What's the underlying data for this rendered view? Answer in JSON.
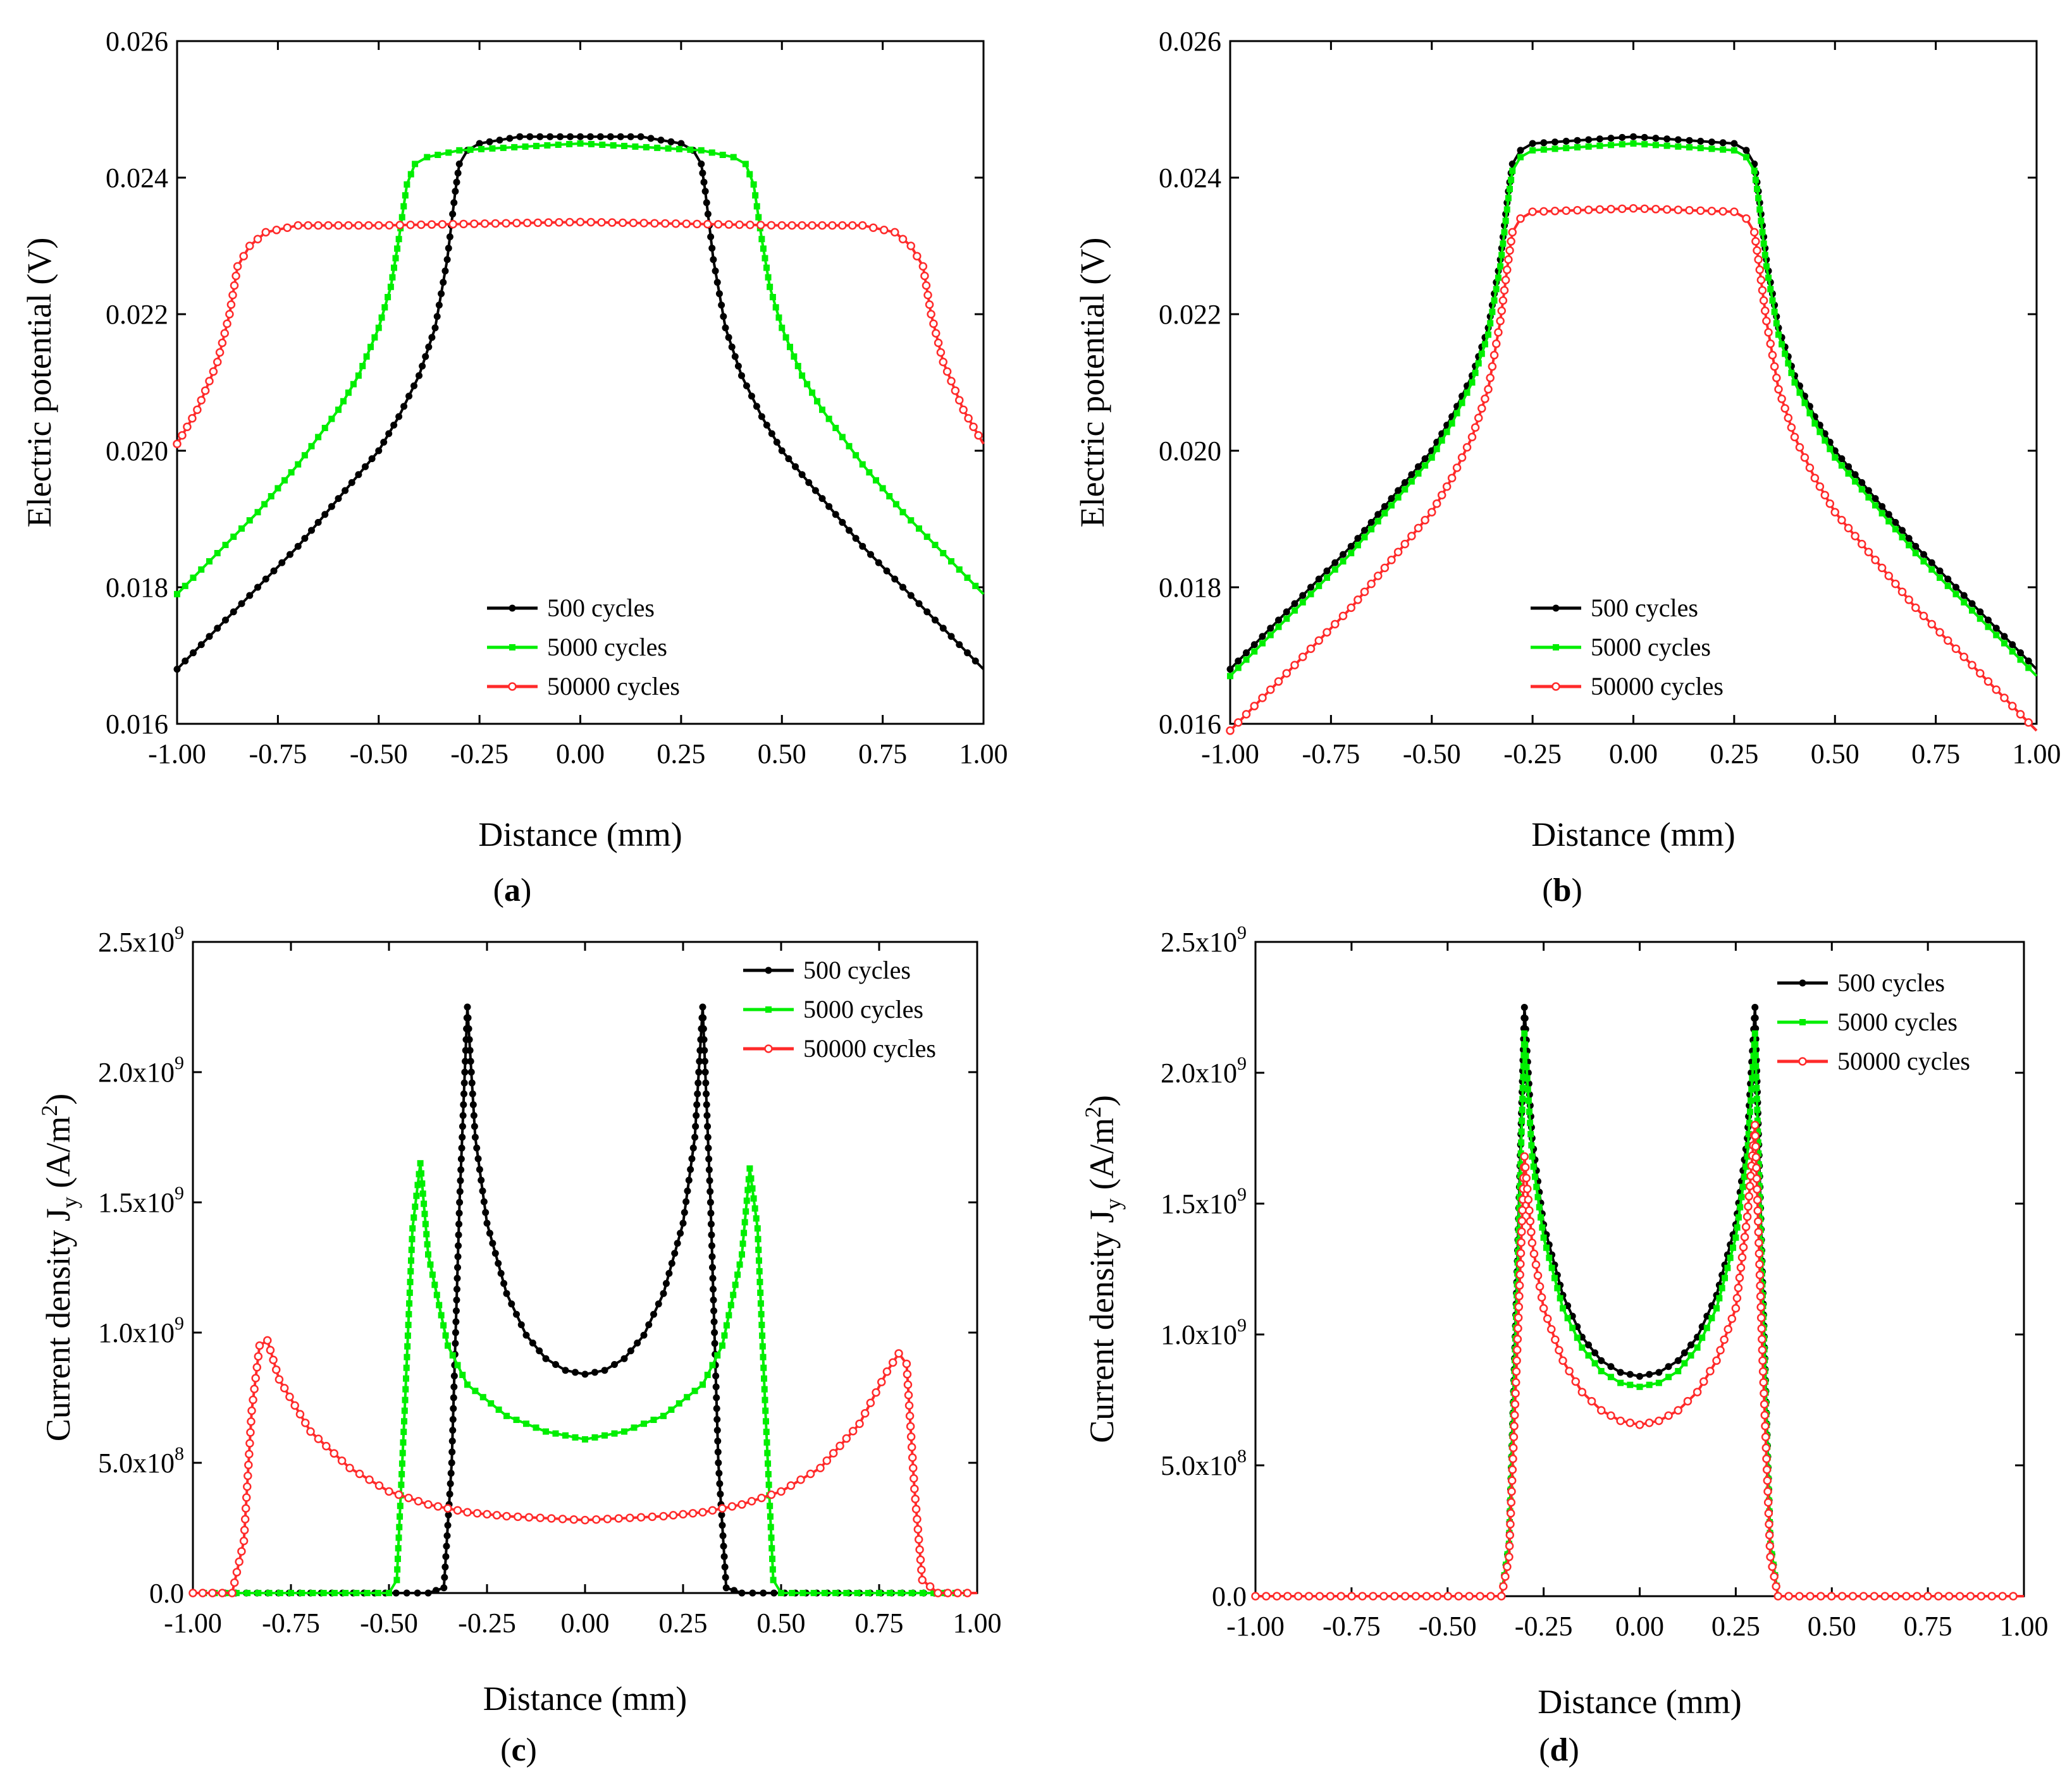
{
  "chart_data": [
    {
      "id": "a",
      "type": "line",
      "panel_label": "a",
      "xlabel": "Distance (mm)",
      "ylabel": "Electric potential (V)",
      "xlim": [
        -1.0,
        1.0
      ],
      "ylim": [
        0.016,
        0.026
      ],
      "xticks": [
        "-1.00",
        "-0.75",
        "-0.50",
        "-0.25",
        "0.00",
        "0.25",
        "0.50",
        "0.75",
        "1.00"
      ],
      "yticks": [
        "0.016",
        "0.018",
        "0.020",
        "0.022",
        "0.024",
        "0.026"
      ],
      "legend_position": "bottom-center",
      "series": [
        {
          "name": "500 cycles",
          "color": "#000000",
          "marker": "dot",
          "x": [
            -1.0,
            -0.9,
            -0.8,
            -0.7,
            -0.6,
            -0.5,
            -0.45,
            -0.4,
            -0.36,
            -0.33,
            -0.31,
            -0.3,
            -0.28,
            -0.25,
            -0.15,
            0.0,
            0.15,
            0.25,
            0.28,
            0.3,
            0.31,
            0.33,
            0.36,
            0.4,
            0.45,
            0.5,
            0.6,
            0.7,
            0.8,
            0.9,
            1.0
          ],
          "y": [
            0.0168,
            0.0174,
            0.018,
            0.0186,
            0.0193,
            0.02,
            0.0205,
            0.0211,
            0.0218,
            0.0228,
            0.0238,
            0.0242,
            0.0244,
            0.0245,
            0.0246,
            0.0246,
            0.0246,
            0.0245,
            0.0244,
            0.0242,
            0.0238,
            0.0228,
            0.0218,
            0.0211,
            0.0205,
            0.02,
            0.0193,
            0.0186,
            0.018,
            0.0174,
            0.0168
          ]
        },
        {
          "name": "5000 cycles",
          "color": "#00ee00",
          "marker": "square",
          "x": [
            -1.0,
            -0.9,
            -0.8,
            -0.7,
            -0.6,
            -0.55,
            -0.5,
            -0.47,
            -0.45,
            -0.43,
            -0.41,
            -0.38,
            -0.3,
            0.0,
            0.3,
            0.38,
            0.41,
            0.43,
            0.45,
            0.47,
            0.5,
            0.55,
            0.6,
            0.7,
            0.8,
            0.9,
            1.0
          ],
          "y": [
            0.0179,
            0.0185,
            0.0191,
            0.0198,
            0.0206,
            0.0211,
            0.0218,
            0.0224,
            0.0231,
            0.0239,
            0.0242,
            0.0243,
            0.0244,
            0.0245,
            0.0244,
            0.0243,
            0.0242,
            0.0239,
            0.0231,
            0.0224,
            0.0218,
            0.0211,
            0.0206,
            0.0198,
            0.0191,
            0.0185,
            0.0179
          ]
        },
        {
          "name": "50000 cycles",
          "color": "#ff2a2a",
          "marker": "open",
          "x": [
            -1.0,
            -0.95,
            -0.9,
            -0.87,
            -0.85,
            -0.82,
            -0.78,
            -0.7,
            -0.5,
            0.0,
            0.5,
            0.7,
            0.78,
            0.82,
            0.85,
            0.87,
            0.9,
            0.95,
            1.0
          ],
          "y": [
            0.0201,
            0.0206,
            0.0213,
            0.022,
            0.0227,
            0.023,
            0.0232,
            0.0233,
            0.0233,
            0.02335,
            0.0233,
            0.0233,
            0.0232,
            0.023,
            0.0227,
            0.022,
            0.0213,
            0.0206,
            0.0201
          ]
        }
      ]
    },
    {
      "id": "b",
      "type": "line",
      "panel_label": "b",
      "xlabel": "Distance (mm)",
      "ylabel": "Electric potential (V)",
      "xlim": [
        -1.0,
        1.0
      ],
      "ylim": [
        0.016,
        0.026
      ],
      "xticks": [
        "-1.00",
        "-0.75",
        "-0.50",
        "-0.25",
        "0.00",
        "0.25",
        "0.50",
        "0.75",
        "1.00"
      ],
      "yticks": [
        "0.016",
        "0.018",
        "0.020",
        "0.022",
        "0.024",
        "0.026"
      ],
      "legend_position": "bottom-right",
      "series": [
        {
          "name": "500 cycles",
          "color": "#000000",
          "marker": "dot",
          "x": [
            -1.0,
            -0.9,
            -0.8,
            -0.7,
            -0.6,
            -0.5,
            -0.45,
            -0.4,
            -0.36,
            -0.33,
            -0.31,
            -0.3,
            -0.28,
            -0.25,
            0.0,
            0.25,
            0.28,
            0.3,
            0.31,
            0.33,
            0.36,
            0.4,
            0.45,
            0.5,
            0.6,
            0.7,
            0.8,
            0.9,
            1.0
          ],
          "y": [
            0.0168,
            0.0174,
            0.018,
            0.0186,
            0.0193,
            0.02,
            0.0205,
            0.0211,
            0.0218,
            0.0228,
            0.0238,
            0.0242,
            0.0244,
            0.0245,
            0.0246,
            0.0245,
            0.0244,
            0.0242,
            0.0238,
            0.0228,
            0.0218,
            0.0211,
            0.0205,
            0.02,
            0.0193,
            0.0186,
            0.018,
            0.0174,
            0.0168
          ]
        },
        {
          "name": "5000 cycles",
          "color": "#00ee00",
          "marker": "square",
          "x": [
            -1.0,
            -0.9,
            -0.8,
            -0.7,
            -0.6,
            -0.5,
            -0.45,
            -0.4,
            -0.36,
            -0.33,
            -0.31,
            -0.3,
            -0.28,
            -0.25,
            0.0,
            0.25,
            0.28,
            0.3,
            0.31,
            0.33,
            0.36,
            0.4,
            0.45,
            0.5,
            0.6,
            0.7,
            0.8,
            0.9,
            1.0
          ],
          "y": [
            0.0167,
            0.0173,
            0.0179,
            0.0185,
            0.0192,
            0.0199,
            0.0204,
            0.021,
            0.0217,
            0.0227,
            0.0237,
            0.0241,
            0.0243,
            0.0244,
            0.0245,
            0.0244,
            0.0243,
            0.0241,
            0.0237,
            0.0227,
            0.0217,
            0.021,
            0.0204,
            0.0199,
            0.0192,
            0.0185,
            0.0179,
            0.0173,
            0.0167
          ]
        },
        {
          "name": "50000 cycles",
          "color": "#ff2a2a",
          "marker": "open",
          "x": [
            -1.0,
            -0.9,
            -0.8,
            -0.7,
            -0.6,
            -0.5,
            -0.45,
            -0.4,
            -0.36,
            -0.33,
            -0.31,
            -0.3,
            -0.28,
            -0.25,
            0.0,
            0.25,
            0.28,
            0.3,
            0.31,
            0.33,
            0.36,
            0.4,
            0.45,
            0.5,
            0.6,
            0.7,
            0.8,
            0.9,
            1.0
          ],
          "y": [
            0.0159,
            0.0165,
            0.0171,
            0.0177,
            0.0184,
            0.0191,
            0.0196,
            0.0202,
            0.0209,
            0.0219,
            0.0228,
            0.0232,
            0.0234,
            0.0235,
            0.02355,
            0.0235,
            0.0234,
            0.0232,
            0.0228,
            0.0219,
            0.0209,
            0.0202,
            0.0196,
            0.0191,
            0.0184,
            0.0177,
            0.0171,
            0.0165,
            0.0159
          ]
        }
      ]
    },
    {
      "id": "c",
      "type": "line",
      "panel_label": "c",
      "xlabel": "Distance (mm)",
      "ylabel": "Current density J",
      "ylabel_sub": "y",
      "ylabel_unit": "(A/m",
      "ylabel_sup": "2",
      "ylabel_close": ")",
      "xlim": [
        -1.0,
        1.0
      ],
      "ylim": [
        0,
        2500000000
      ],
      "xticks": [
        "-1.00",
        "-0.75",
        "-0.50",
        "-0.25",
        "0.00",
        "0.25",
        "0.50",
        "0.75",
        "1.00"
      ],
      "yticks": [
        {
          "mant": "0.0",
          "exp": ""
        },
        {
          "mant": "5.0x10",
          "exp": "8"
        },
        {
          "mant": "1.0x10",
          "exp": "9"
        },
        {
          "mant": "1.5x10",
          "exp": "9"
        },
        {
          "mant": "2.0x10",
          "exp": "9"
        },
        {
          "mant": "2.5x10",
          "exp": "9"
        }
      ],
      "legend_position": "top-right",
      "series": [
        {
          "name": "500 cycles",
          "color": "#000000",
          "marker": "dot",
          "x": [
            -1.0,
            -0.4,
            -0.36,
            -0.34,
            -0.32,
            -0.3,
            -0.28,
            -0.25,
            -0.2,
            -0.15,
            -0.1,
            -0.05,
            0.0,
            0.05,
            0.1,
            0.15,
            0.2,
            0.25,
            0.28,
            0.3,
            0.32,
            0.34,
            0.36,
            0.4,
            1.0
          ],
          "y": [
            0,
            0,
            20000000,
            500000000,
            1500000000,
            2250000000,
            1750000000,
            1420000000,
            1150000000,
            990000000,
            900000000,
            855000000,
            840000000,
            855000000,
            900000000,
            990000000,
            1150000000,
            1420000000,
            1750000000,
            2250000000,
            1500000000,
            500000000,
            20000000,
            0,
            0
          ]
        },
        {
          "name": "5000 cycles",
          "color": "#00ee00",
          "marker": "square",
          "x": [
            -1.0,
            -0.5,
            -0.48,
            -0.46,
            -0.44,
            -0.42,
            -0.4,
            -0.35,
            -0.3,
            -0.2,
            -0.1,
            0.0,
            0.1,
            0.2,
            0.3,
            0.35,
            0.4,
            0.42,
            0.44,
            0.46,
            0.48,
            0.5,
            1.0
          ],
          "y": [
            0,
            0,
            50000000,
            700000000,
            1400000000,
            1650000000,
            1300000000,
            950000000,
            800000000,
            680000000,
            620000000,
            590000000,
            620000000,
            680000000,
            800000000,
            950000000,
            1300000000,
            1630000000,
            1400000000,
            700000000,
            50000000,
            0,
            0
          ]
        },
        {
          "name": "50000 cycles",
          "color": "#ff2a2a",
          "marker": "open",
          "x": [
            -1.0,
            -0.9,
            -0.87,
            -0.85,
            -0.83,
            -0.81,
            -0.78,
            -0.7,
            -0.6,
            -0.5,
            -0.4,
            -0.3,
            -0.2,
            0.0,
            0.2,
            0.3,
            0.4,
            0.5,
            0.6,
            0.7,
            0.77,
            0.8,
            0.82,
            0.84,
            0.86,
            0.9,
            1.0
          ],
          "y": [
            0,
            0,
            200000000,
            700000000,
            950000000,
            970000000,
            820000000,
            620000000,
            480000000,
            390000000,
            340000000,
            310000000,
            295000000,
            280000000,
            295000000,
            310000000,
            340000000,
            390000000,
            480000000,
            650000000,
            850000000,
            920000000,
            880000000,
            400000000,
            50000000,
            0,
            0
          ]
        }
      ]
    },
    {
      "id": "d",
      "type": "line",
      "panel_label": "d",
      "xlabel": "Distance (mm)",
      "ylabel": "Current density J",
      "ylabel_sub": "y",
      "ylabel_unit": "(A/m",
      "ylabel_sup": "2",
      "ylabel_close": ")",
      "xlim": [
        -1.0,
        1.0
      ],
      "ylim": [
        0,
        2500000000
      ],
      "xticks": [
        "-1.00",
        "-0.75",
        "-0.50",
        "-0.25",
        "0.00",
        "0.25",
        "0.50",
        "0.75",
        "1.00"
      ],
      "yticks": [
        {
          "mant": "0.0",
          "exp": ""
        },
        {
          "mant": "5.0x10",
          "exp": "8"
        },
        {
          "mant": "1.0x10",
          "exp": "9"
        },
        {
          "mant": "1.5x10",
          "exp": "9"
        },
        {
          "mant": "2.0x10",
          "exp": "9"
        },
        {
          "mant": "2.5x10",
          "exp": "9"
        }
      ],
      "legend_position": "top-right",
      "series": [
        {
          "name": "500 cycles",
          "color": "#000000",
          "marker": "dot",
          "x": [
            -1.0,
            -0.36,
            -0.34,
            -0.32,
            -0.3,
            -0.28,
            -0.25,
            -0.2,
            -0.15,
            -0.1,
            -0.05,
            0.0,
            0.05,
            0.1,
            0.15,
            0.2,
            0.25,
            0.28,
            0.3,
            0.32,
            0.34,
            0.36,
            1.0
          ],
          "y": [
            0,
            0,
            200000000,
            1200000000,
            2250000000,
            1750000000,
            1420000000,
            1150000000,
            990000000,
            900000000,
            855000000,
            840000000,
            855000000,
            900000000,
            990000000,
            1150000000,
            1420000000,
            1750000000,
            2250000000,
            1200000000,
            200000000,
            0,
            0
          ]
        },
        {
          "name": "5000 cycles",
          "color": "#00ee00",
          "marker": "square",
          "x": [
            -1.0,
            -0.36,
            -0.34,
            -0.32,
            -0.3,
            -0.28,
            -0.25,
            -0.2,
            -0.15,
            -0.1,
            -0.05,
            0.0,
            0.05,
            0.1,
            0.15,
            0.2,
            0.25,
            0.28,
            0.3,
            0.32,
            0.34,
            0.36,
            1.0
          ],
          "y": [
            0,
            0,
            200000000,
            1150000000,
            2150000000,
            1680000000,
            1370000000,
            1100000000,
            950000000,
            860000000,
            815000000,
            800000000,
            815000000,
            860000000,
            950000000,
            1100000000,
            1370000000,
            1680000000,
            2150000000,
            1150000000,
            200000000,
            0,
            0
          ]
        },
        {
          "name": "50000 cycles",
          "color": "#ff2a2a",
          "marker": "open",
          "x": [
            -1.0,
            -0.36,
            -0.34,
            -0.32,
            -0.3,
            -0.28,
            -0.25,
            -0.2,
            -0.15,
            -0.1,
            -0.05,
            0.0,
            0.05,
            0.1,
            0.15,
            0.2,
            0.25,
            0.28,
            0.3,
            0.32,
            0.34,
            0.36,
            1.0
          ],
          "y": [
            0,
            0,
            150000000,
            900000000,
            1680000000,
            1350000000,
            1100000000,
            900000000,
            780000000,
            710000000,
            670000000,
            655000000,
            670000000,
            710000000,
            780000000,
            900000000,
            1100000000,
            1450000000,
            1800000000,
            900000000,
            150000000,
            0,
            0
          ]
        }
      ]
    }
  ]
}
